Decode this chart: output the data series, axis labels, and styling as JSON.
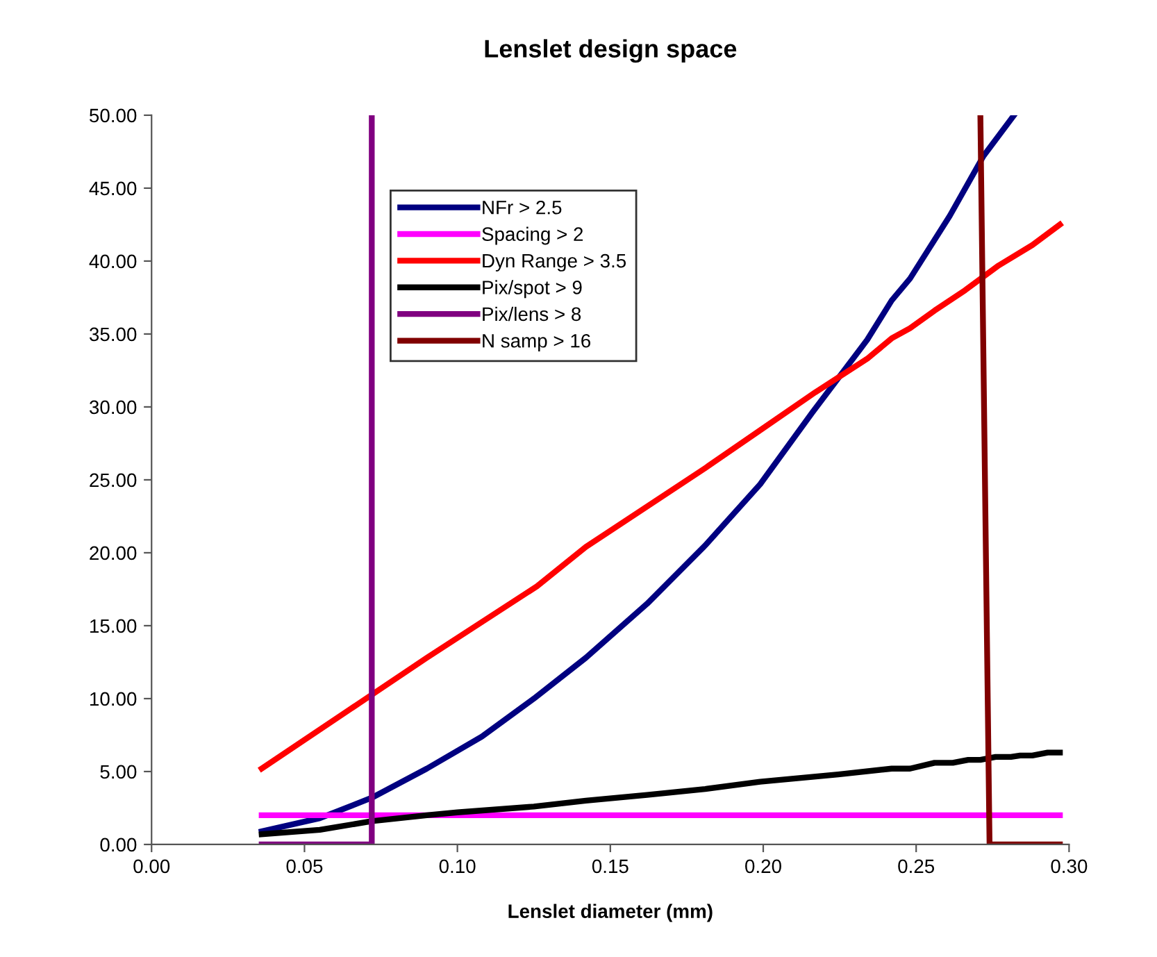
{
  "chart_data": {
    "type": "line",
    "title": "Lenslet design space",
    "xlabel": "Lenslet diameter (mm)",
    "xlim": [
      0,
      0.3
    ],
    "xticks": [
      {
        "value": 0,
        "label": "0.00"
      },
      {
        "value": 0.05,
        "label": "0.05"
      },
      {
        "value": 0.1,
        "label": "0.10"
      },
      {
        "value": 0.15,
        "label": "0.15"
      },
      {
        "value": 0.2,
        "label": "0.20"
      },
      {
        "value": 0.25,
        "label": "0.25"
      },
      {
        "value": 0.3,
        "label": "0.30"
      }
    ],
    "ylim": [
      0,
      50
    ],
    "yticks": [
      {
        "value": 0,
        "label": "0.00"
      },
      {
        "value": 5,
        "label": "5.00"
      },
      {
        "value": 10,
        "label": "10.00"
      },
      {
        "value": 15,
        "label": "15.00"
      },
      {
        "value": 20,
        "label": "20.00"
      },
      {
        "value": 25,
        "label": "25.00"
      },
      {
        "value": 30,
        "label": "30.00"
      },
      {
        "value": 35,
        "label": "35.00"
      },
      {
        "value": 40,
        "label": "40.00"
      },
      {
        "value": 45,
        "label": "45.00"
      },
      {
        "value": 50,
        "label": "50.00"
      }
    ],
    "grid": false,
    "legend": "top left",
    "marker": "none",
    "line_style": "solid",
    "series": [
      {
        "name": "NFr > 2.5",
        "color": "#000080",
        "x": [
          0.036,
          0.055,
          0.072,
          0.09,
          0.108,
          0.125,
          0.142,
          0.162,
          0.181,
          0.199,
          0.216,
          0.234,
          0.242,
          0.248,
          0.261,
          0.272,
          0.282
        ],
        "values": [
          0.9,
          1.8,
          3.2,
          5.2,
          7.4,
          10.0,
          12.8,
          16.5,
          20.5,
          24.7,
          29.6,
          34.6,
          37.3,
          38.8,
          43.1,
          47.2,
          50
        ]
      },
      {
        "name": "Spacing > 2",
        "color": "#ff00ff",
        "x": [
          0.036,
          0.297
        ],
        "values": [
          2.0,
          2.0
        ]
      },
      {
        "name": "Dyn Range > 3.5",
        "color": "#ff0000",
        "x": [
          0.036,
          0.09,
          0.126,
          0.142,
          0.181,
          0.199,
          0.217,
          0.234,
          0.242,
          0.248,
          0.256,
          0.266,
          0.277,
          0.288,
          0.297
        ],
        "values": [
          5.2,
          12.8,
          17.7,
          20.4,
          25.8,
          28.4,
          31.0,
          33.3,
          34.7,
          35.4,
          36.6,
          38.0,
          39.7,
          41.1,
          42.5
        ]
      },
      {
        "name": "Pix/spot > 9",
        "color": "#000000",
        "x": [
          0.036,
          0.055,
          0.072,
          0.09,
          0.1,
          0.125,
          0.142,
          0.162,
          0.181,
          0.199,
          0.2245,
          0.242,
          0.248,
          0.256,
          0.262,
          0.267,
          0.271,
          0.276,
          0.281,
          0.284,
          0.288,
          0.293,
          0.297
        ],
        "values": [
          0.7,
          1.0,
          1.6,
          2.0,
          2.2,
          2.6,
          3.0,
          3.4,
          3.8,
          4.3,
          4.8,
          5.2,
          5.2,
          5.6,
          5.6,
          5.8,
          5.8,
          6.0,
          6.0,
          6.1,
          6.1,
          6.3,
          6.3
        ]
      },
      {
        "name": "Pix/lens > 8",
        "color": "#800080",
        "x": [
          0.036,
          0.072,
          0.072
        ],
        "values": [
          0,
          0,
          50
        ]
      },
      {
        "name": "N samp > 16",
        "color": "#800000",
        "x": [
          0.271,
          0.274,
          0.297
        ],
        "values": [
          50,
          0,
          0
        ]
      }
    ]
  }
}
